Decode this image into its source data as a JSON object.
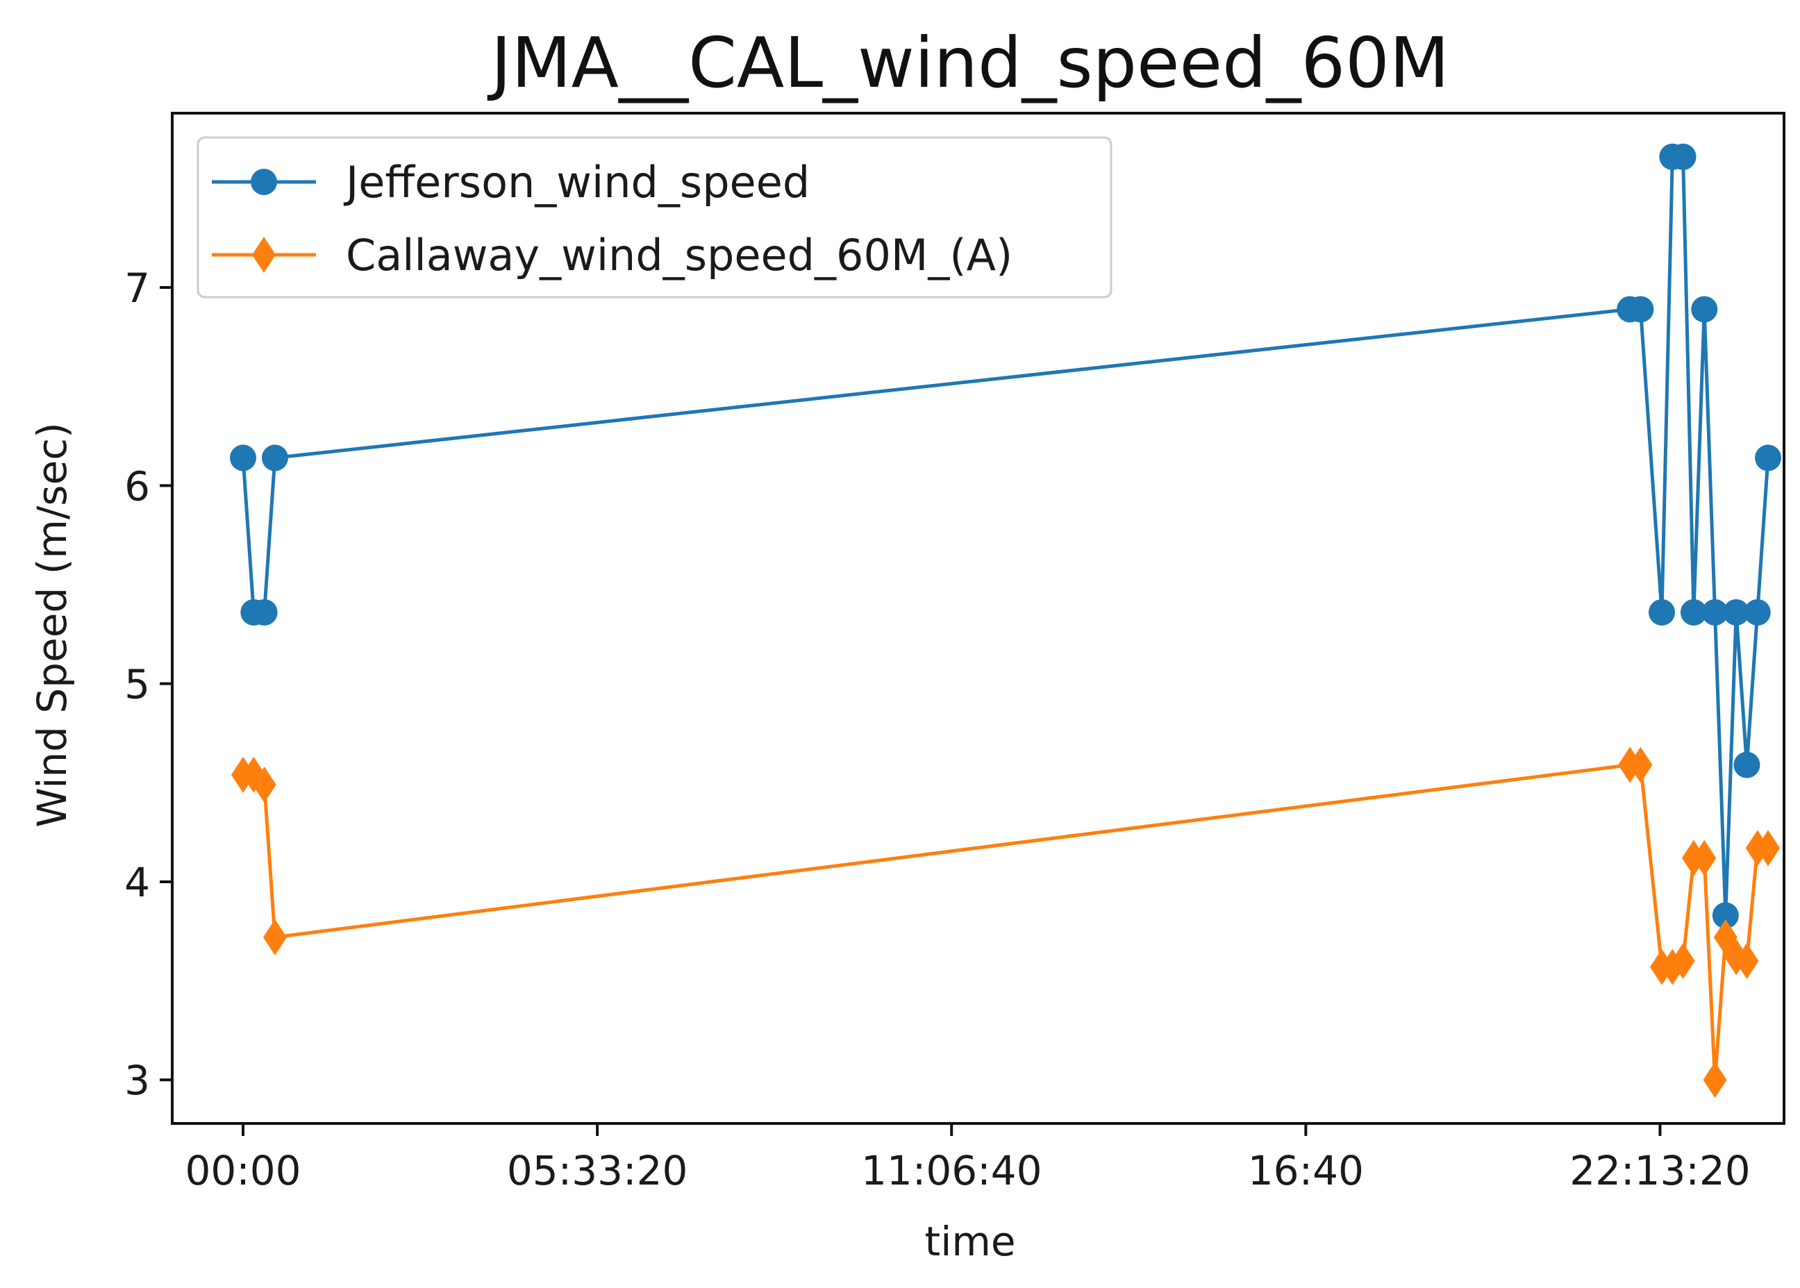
{
  "chart_data": {
    "type": "line",
    "title": "JMA__CAL_wind_speed_60M",
    "xlabel": "time",
    "ylabel": "Wind Speed (m/sec)",
    "x_unit": "seconds since 00:00",
    "xlim": [
      -4000,
      87000
    ],
    "ylim": [
      2.78,
      7.88
    ],
    "xticks": [
      {
        "value": 0,
        "label": "00:00"
      },
      {
        "value": 20000,
        "label": "05:33:20"
      },
      {
        "value": 40000,
        "label": "11:06:40"
      },
      {
        "value": 60000,
        "label": "16:40"
      },
      {
        "value": 80000,
        "label": "22:13:20"
      }
    ],
    "yticks": [
      {
        "value": 3,
        "label": "3"
      },
      {
        "value": 4,
        "label": "4"
      },
      {
        "value": 5,
        "label": "5"
      },
      {
        "value": 6,
        "label": "6"
      },
      {
        "value": 7,
        "label": "7"
      }
    ],
    "legend_position": "top-left",
    "grid": false,
    "series": [
      {
        "name": "Jefferson_wind_speed",
        "color": "#1f77b4",
        "marker": "circle",
        "x": [
          0,
          600,
          1200,
          1800,
          78300,
          78900,
          80100,
          80700,
          81300,
          81900,
          82500,
          83100,
          83700,
          84300,
          84900,
          85500,
          86100
        ],
        "y": [
          6.14,
          5.36,
          5.36,
          6.14,
          6.89,
          6.89,
          5.36,
          7.66,
          7.66,
          5.36,
          6.89,
          5.36,
          3.83,
          5.36,
          4.59,
          5.36,
          6.14
        ]
      },
      {
        "name": "Callaway_wind_speed_60M_(A)",
        "color": "#ff7f0e",
        "marker": "diamond",
        "x": [
          0,
          600,
          1200,
          1800,
          78300,
          78900,
          80100,
          80700,
          81300,
          81900,
          82500,
          83100,
          83700,
          84300,
          84900,
          85500,
          86100
        ],
        "y": [
          4.54,
          4.54,
          4.49,
          3.72,
          4.59,
          4.59,
          3.57,
          3.57,
          3.6,
          4.12,
          4.12,
          3.0,
          3.72,
          3.62,
          3.6,
          4.17,
          4.17
        ]
      }
    ]
  }
}
